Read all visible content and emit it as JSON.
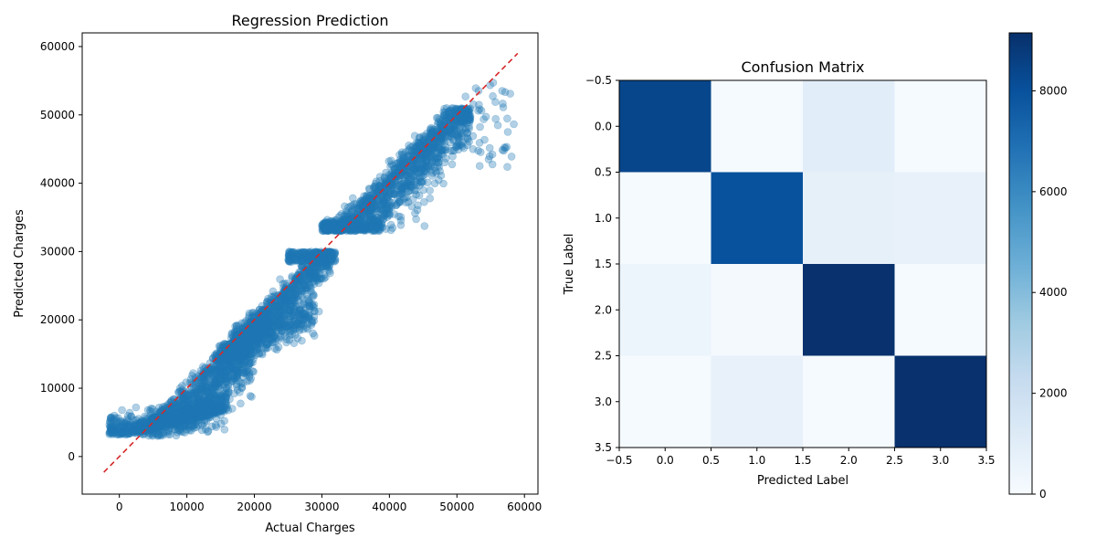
{
  "chart_data": [
    {
      "type": "scatter",
      "title": "Regression Prediction",
      "xlabel": "Actual Charges",
      "ylabel": "Predicted Charges",
      "xlim": [
        -5500,
        62000
      ],
      "ylim": [
        -5500,
        62000
      ],
      "xticks": [
        0,
        10000,
        20000,
        30000,
        40000,
        50000,
        60000
      ],
      "yticks": [
        0,
        10000,
        20000,
        30000,
        40000,
        50000,
        60000
      ],
      "xtick_labels": [
        "0",
        "10000",
        "20000",
        "30000",
        "40000",
        "50000",
        "60000"
      ],
      "ytick_labels": [
        "0",
        "10000",
        "20000",
        "30000",
        "40000",
        "50000",
        "60000"
      ],
      "point_color": "#1f77b4",
      "point_alpha": 0.35,
      "grid": false,
      "clusters": [
        {
          "x_range": [
            -2000,
            17000
          ],
          "y_range": [
            3000,
            9000
          ],
          "trend": "along-diagonal"
        },
        {
          "x_range": [
            5000,
            22000
          ],
          "y_range": [
            3000,
            20000
          ],
          "trend": "along-diagonal"
        },
        {
          "x_range": [
            14000,
            32000
          ],
          "y_range": [
            14000,
            30000
          ],
          "trend": "along-diagonal"
        },
        {
          "x_range": [
            22000,
            32000
          ],
          "y_range": [
            15000,
            30000
          ],
          "trend": "cap-at-30000"
        },
        {
          "x_range": [
            30000,
            53000
          ],
          "y_range": [
            33000,
            51000
          ],
          "trend": "along-diagonal"
        },
        {
          "x_range": [
            50000,
            59000
          ],
          "y_range": [
            42000,
            55000
          ],
          "trend": "sparse"
        }
      ],
      "reference_line": {
        "x": [
          -2300,
          59000
        ],
        "y": [
          -2300,
          59000
        ],
        "color": "#d62728",
        "style": "dashed"
      }
    },
    {
      "type": "heatmap",
      "title": "Confusion Matrix",
      "xlabel": "Predicted Label",
      "ylabel": "True Label",
      "xlim": [
        -0.5,
        3.5
      ],
      "ylim": [
        3.5,
        -0.5
      ],
      "xticks": [
        -0.5,
        0.0,
        0.5,
        1.0,
        1.5,
        2.0,
        2.5,
        3.0,
        3.5
      ],
      "yticks": [
        -0.5,
        0.0,
        0.5,
        1.0,
        1.5,
        2.0,
        2.5,
        3.0,
        3.5
      ],
      "xtick_labels": [
        "−0.5",
        "0.0",
        "0.5",
        "1.0",
        "1.5",
        "2.0",
        "2.5",
        "3.0",
        "3.5"
      ],
      "ytick_labels": [
        "−0.5",
        "0.0",
        "0.5",
        "1.0",
        "1.5",
        "2.0",
        "2.5",
        "3.0",
        "3.5"
      ],
      "matrix": [
        [
          8400,
          100,
          1000,
          100
        ],
        [
          80,
          8000,
          800,
          700
        ],
        [
          500,
          150,
          9100,
          100
        ],
        [
          100,
          700,
          100,
          9100
        ]
      ],
      "colormap": "Blues",
      "colorbar": {
        "vmin": 0,
        "vmax": 9150,
        "ticks": [
          0,
          2000,
          4000,
          6000,
          8000
        ],
        "tick_labels": [
          "0",
          "2000",
          "4000",
          "6000",
          "8000"
        ]
      }
    }
  ]
}
